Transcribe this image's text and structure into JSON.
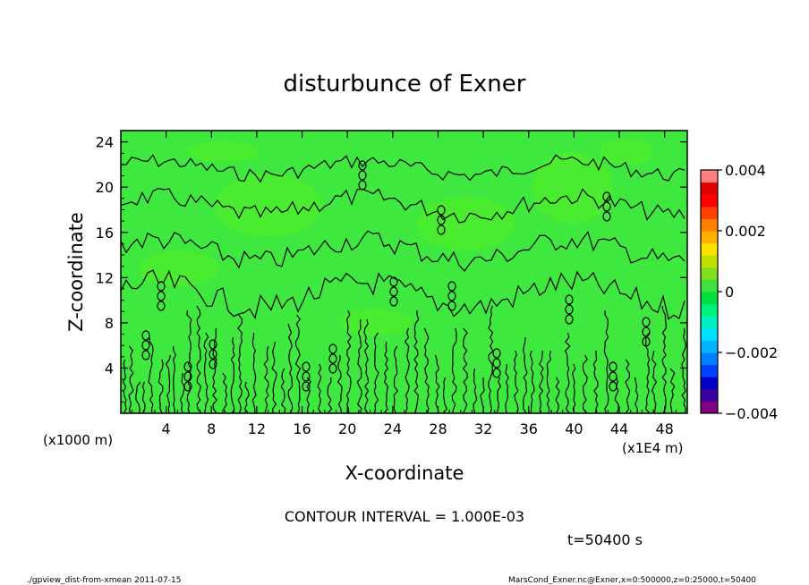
{
  "chart_data": {
    "type": "heatmap",
    "title": "disturbunce of Exner",
    "xlabel": "X-coordinate",
    "ylabel": "Z-coordinate",
    "x_unit_left": "(x1000 m)",
    "x_unit_right": "(x1E4 m)",
    "xlim": [
      0,
      50
    ],
    "ylim": [
      0,
      25
    ],
    "x_ticks": [
      4,
      8,
      12,
      16,
      20,
      24,
      28,
      32,
      36,
      40,
      44,
      48
    ],
    "y_ticks": [
      4,
      8,
      12,
      16,
      20,
      24
    ],
    "colorbar": {
      "min": -0.004,
      "max": 0.004,
      "tick_values": [
        0.004,
        0.002,
        0,
        -0.002,
        -0.004
      ],
      "tick_labels": [
        "0.004",
        "0.002",
        "0",
        "−0.002",
        "−0.004"
      ],
      "colors": [
        "#800080",
        "#3a00a0",
        "#0000c8",
        "#0040ff",
        "#0080ff",
        "#00b4ff",
        "#00e0ff",
        "#00f0c0",
        "#00f080",
        "#00e040",
        "#40e040",
        "#80e020",
        "#c0e000",
        "#ffe000",
        "#ffb000",
        "#ff8000",
        "#ff4000",
        "#ff0000",
        "#e00000",
        "#ff8080"
      ]
    },
    "field": {
      "background_value": 0.0003,
      "background_color": "#3ee83e",
      "patch_color": "#52ee22",
      "contour_interval": 0.001
    },
    "contour_label": "CONTOUR INTERVAL = 1.000E-03",
    "time_label": "t=50400 s"
  },
  "footer": {
    "left": "./gpview_dist-from-xmean  2011-07-15",
    "right": "MarsCond_Exner.nc@Exner,x=0:500000,z=0:25000,t=50400"
  }
}
